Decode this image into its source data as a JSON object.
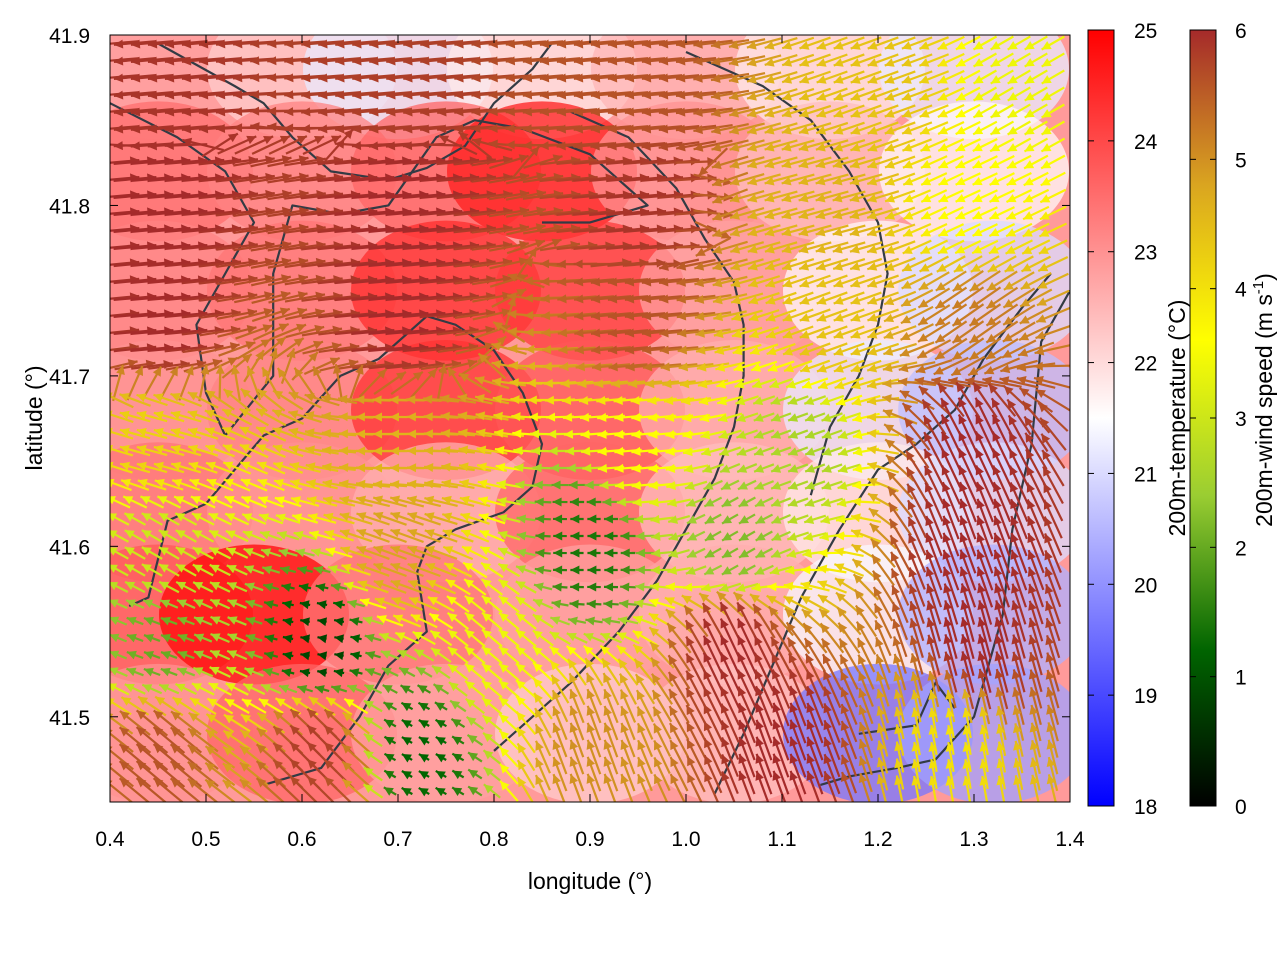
{
  "chart_data": {
    "type": "heatmap",
    "title": "",
    "xlabel": "longitude (°)",
    "ylabel": "latitude (°)",
    "xlim": [
      0.4,
      1.4
    ],
    "ylim": [
      41.45,
      41.9
    ],
    "x_ticks": [
      0.4,
      0.5,
      0.6,
      0.7,
      0.8,
      0.9,
      1.0,
      1.1,
      1.2,
      1.3,
      1.4
    ],
    "x_tick_labels": [
      "0.4",
      "0.5",
      "0.6",
      "0.7",
      "0.8",
      "0.9",
      "1.0",
      "1.1",
      "1.2",
      "1.3",
      "1.4"
    ],
    "y_ticks": [
      41.5,
      41.6,
      41.7,
      41.8,
      41.9
    ],
    "y_tick_labels": [
      "41.5",
      "41.6",
      "41.7",
      "41.8",
      "41.9"
    ],
    "temperature_colorbar": {
      "label": "200m-temperature (°C)",
      "range": [
        18,
        25
      ],
      "ticks": [
        18,
        19,
        20,
        21,
        22,
        23,
        24,
        25
      ],
      "tick_labels": [
        "18",
        "19",
        "20",
        "21",
        "22",
        "23",
        "24",
        "25"
      ],
      "colors": [
        "#0000ff",
        "#ffffff",
        "#ff0000"
      ]
    },
    "wind_colorbar": {
      "label": "200m-wind speed (m s-1)",
      "label_main": "200m-wind speed (m s",
      "label_sup": "-1",
      "label_end": ")",
      "range": [
        0,
        6
      ],
      "ticks": [
        0,
        1,
        2,
        3,
        4,
        5,
        6
      ],
      "tick_labels": [
        "0",
        "1",
        "2",
        "3",
        "4",
        "5",
        "6"
      ],
      "colors": [
        "#000000",
        "#006400",
        "#9acd32",
        "#ffff00",
        "#daa520",
        "#a52a2a"
      ]
    },
    "temperature_field": [
      [
        41.88,
        0.45,
        22.8
      ],
      [
        41.88,
        0.6,
        22.2
      ],
      [
        41.88,
        0.7,
        21.2
      ],
      [
        41.88,
        0.85,
        21.8
      ],
      [
        41.88,
        1.0,
        22.5
      ],
      [
        41.88,
        1.15,
        21.8
      ],
      [
        41.88,
        1.3,
        21.2
      ],
      [
        41.82,
        0.45,
        23.5
      ],
      [
        41.82,
        0.6,
        23.2
      ],
      [
        41.82,
        0.75,
        23.6
      ],
      [
        41.82,
        0.85,
        24.6
      ],
      [
        41.82,
        1.0,
        23.0
      ],
      [
        41.82,
        1.15,
        22.4
      ],
      [
        41.82,
        1.3,
        21.6
      ],
      [
        41.75,
        0.45,
        23.2
      ],
      [
        41.75,
        0.6,
        23.4
      ],
      [
        41.75,
        0.75,
        24.4
      ],
      [
        41.75,
        0.9,
        24.2
      ],
      [
        41.75,
        1.05,
        22.8
      ],
      [
        41.75,
        1.2,
        21.6
      ],
      [
        41.75,
        1.32,
        21.0
      ],
      [
        41.68,
        0.45,
        23.0
      ],
      [
        41.68,
        0.6,
        23.2
      ],
      [
        41.68,
        0.75,
        24.3
      ],
      [
        41.68,
        0.9,
        23.8
      ],
      [
        41.68,
        1.05,
        22.6
      ],
      [
        41.68,
        1.2,
        21.2
      ],
      [
        41.68,
        1.32,
        20.6
      ],
      [
        41.62,
        0.45,
        23.4
      ],
      [
        41.62,
        0.6,
        23.0
      ],
      [
        41.62,
        0.75,
        22.6
      ],
      [
        41.62,
        0.9,
        23.6
      ],
      [
        41.62,
        1.05,
        22.4
      ],
      [
        41.62,
        1.2,
        21.8
      ],
      [
        41.62,
        1.32,
        21.0
      ],
      [
        41.56,
        0.45,
        23.8
      ],
      [
        41.56,
        0.55,
        24.9
      ],
      [
        41.56,
        0.7,
        23.4
      ],
      [
        41.56,
        0.9,
        22.8
      ],
      [
        41.56,
        1.05,
        22.6
      ],
      [
        41.56,
        1.2,
        21.4
      ],
      [
        41.56,
        1.32,
        20.4
      ],
      [
        41.49,
        0.45,
        23.0
      ],
      [
        41.49,
        0.6,
        23.6
      ],
      [
        41.49,
        0.75,
        22.8
      ],
      [
        41.49,
        0.9,
        22.2
      ],
      [
        41.49,
        1.05,
        22.4
      ],
      [
        41.49,
        1.2,
        19.6
      ],
      [
        41.49,
        1.32,
        20.2
      ]
    ],
    "wind_field": [
      [
        41.87,
        0.45,
        5.9,
        185
      ],
      [
        41.87,
        0.7,
        5.8,
        185
      ],
      [
        41.87,
        0.95,
        5.6,
        185
      ],
      [
        41.87,
        1.2,
        4.4,
        200
      ],
      [
        41.87,
        1.35,
        3.4,
        210
      ],
      [
        41.8,
        0.45,
        6.0,
        5
      ],
      [
        41.8,
        0.7,
        6.0,
        5
      ],
      [
        41.8,
        0.95,
        5.9,
        5
      ],
      [
        41.8,
        1.15,
        4.6,
        195
      ],
      [
        41.8,
        1.3,
        3.6,
        205
      ],
      [
        41.73,
        0.45,
        6.0,
        5
      ],
      [
        41.73,
        0.7,
        6.0,
        5
      ],
      [
        41.73,
        0.95,
        5.6,
        185
      ],
      [
        41.73,
        1.15,
        4.4,
        200
      ],
      [
        41.73,
        1.3,
        5.2,
        215
      ],
      [
        41.66,
        0.45,
        4.2,
        165
      ],
      [
        41.66,
        0.7,
        4.6,
        180
      ],
      [
        41.66,
        0.95,
        3.6,
        185
      ],
      [
        41.66,
        1.12,
        2.6,
        200
      ],
      [
        41.66,
        1.3,
        6.0,
        115
      ],
      [
        41.6,
        0.45,
        3.0,
        150
      ],
      [
        41.6,
        0.7,
        4.8,
        160
      ],
      [
        41.6,
        0.9,
        1.4,
        180
      ],
      [
        41.6,
        1.05,
        2.2,
        210
      ],
      [
        41.6,
        1.3,
        6.0,
        110
      ],
      [
        41.54,
        0.45,
        2.0,
        160
      ],
      [
        41.54,
        0.62,
        0.8,
        170
      ],
      [
        41.54,
        0.8,
        3.4,
        140
      ],
      [
        41.54,
        1.05,
        6.0,
        115
      ],
      [
        41.54,
        1.3,
        6.0,
        105
      ],
      [
        41.48,
        0.45,
        5.6,
        140
      ],
      [
        41.48,
        0.62,
        5.8,
        135
      ],
      [
        41.48,
        0.72,
        1.2,
        150
      ],
      [
        41.48,
        0.9,
        5.0,
        110
      ],
      [
        41.48,
        1.1,
        6.0,
        110
      ],
      [
        41.48,
        1.28,
        4.0,
        100
      ]
    ],
    "contour_lines": [
      [
        [
          0.45,
          41.895
        ],
        [
          0.53,
          41.87
        ],
        [
          0.56,
          41.86
        ],
        [
          0.59,
          41.84
        ],
        [
          0.63,
          41.82
        ],
        [
          0.69,
          41.815
        ],
        [
          0.73,
          41.822
        ],
        [
          0.77,
          41.835
        ],
        [
          0.8,
          41.86
        ],
        [
          0.84,
          41.88
        ],
        [
          0.86,
          41.895
        ]
      ],
      [
        [
          0.4,
          41.86
        ],
        [
          0.47,
          41.84
        ],
        [
          0.52,
          41.82
        ],
        [
          0.55,
          41.79
        ],
        [
          0.52,
          41.76
        ],
        [
          0.49,
          41.73
        ],
        [
          0.5,
          41.69
        ],
        [
          0.52,
          41.665
        ],
        [
          0.57,
          41.7
        ],
        [
          0.57,
          41.76
        ],
        [
          0.59,
          41.8
        ],
        [
          0.64,
          41.795
        ],
        [
          0.69,
          41.8
        ],
        [
          0.74,
          41.84
        ],
        [
          0.78,
          41.85
        ],
        [
          0.83,
          41.845
        ],
        [
          0.9,
          41.83
        ],
        [
          0.96,
          41.8
        ],
        [
          0.9,
          41.79
        ],
        [
          0.85,
          41.79
        ]
      ],
      [
        [
          0.42,
          41.565
        ],
        [
          0.44,
          41.57
        ],
        [
          0.46,
          41.615
        ],
        [
          0.5,
          41.625
        ],
        [
          0.56,
          41.665
        ],
        [
          0.6,
          41.675
        ],
        [
          0.64,
          41.7
        ],
        [
          0.68,
          41.71
        ],
        [
          0.73,
          41.735
        ],
        [
          0.76,
          41.73
        ],
        [
          0.8,
          41.715
        ],
        [
          0.83,
          41.69
        ],
        [
          0.85,
          41.66
        ],
        [
          0.84,
          41.635
        ],
        [
          0.81,
          41.62
        ],
        [
          0.76,
          41.61
        ],
        [
          0.73,
          41.6
        ],
        [
          0.72,
          41.585
        ],
        [
          0.73,
          41.55
        ],
        [
          0.69,
          41.53
        ],
        [
          0.66,
          41.5
        ],
        [
          0.62,
          41.47
        ],
        [
          0.56,
          41.46
        ]
      ],
      [
        [
          0.8,
          41.48
        ],
        [
          0.84,
          41.5
        ],
        [
          0.88,
          41.52
        ],
        [
          0.93,
          41.55
        ],
        [
          0.97,
          41.58
        ],
        [
          1.0,
          41.61
        ],
        [
          1.03,
          41.64
        ],
        [
          1.05,
          41.67
        ],
        [
          1.06,
          41.7
        ],
        [
          1.06,
          41.73
        ],
        [
          1.05,
          41.755
        ],
        [
          1.02,
          41.78
        ],
        [
          0.99,
          41.81
        ],
        [
          0.94,
          41.84
        ],
        [
          0.88,
          41.855
        ]
      ],
      [
        [
          1.03,
          41.455
        ],
        [
          1.06,
          41.49
        ],
        [
          1.09,
          41.53
        ],
        [
          1.12,
          41.57
        ],
        [
          1.16,
          41.61
        ],
        [
          1.2,
          41.645
        ],
        [
          1.24,
          41.66
        ],
        [
          1.28,
          41.68
        ],
        [
          1.31,
          41.71
        ],
        [
          1.35,
          41.74
        ],
        [
          1.38,
          41.76
        ]
      ],
      [
        [
          1.13,
          41.63
        ],
        [
          1.15,
          41.67
        ],
        [
          1.18,
          41.7
        ],
        [
          1.2,
          41.73
        ],
        [
          1.21,
          41.76
        ],
        [
          1.2,
          41.79
        ],
        [
          1.17,
          41.82
        ],
        [
          1.13,
          41.85
        ],
        [
          1.08,
          41.87
        ],
        [
          1.0,
          41.89
        ]
      ],
      [
        [
          1.18,
          41.49
        ],
        [
          1.24,
          41.495
        ],
        [
          1.26,
          41.52
        ],
        [
          1.28,
          41.505
        ]
      ],
      [
        [
          1.14,
          41.46
        ],
        [
          1.17,
          41.465
        ],
        [
          1.22,
          41.47
        ],
        [
          1.26,
          41.475
        ],
        [
          1.3,
          41.5
        ],
        [
          1.33,
          41.56
        ],
        [
          1.34,
          41.61
        ],
        [
          1.36,
          41.66
        ],
        [
          1.37,
          41.72
        ],
        [
          1.4,
          41.75
        ]
      ]
    ]
  }
}
